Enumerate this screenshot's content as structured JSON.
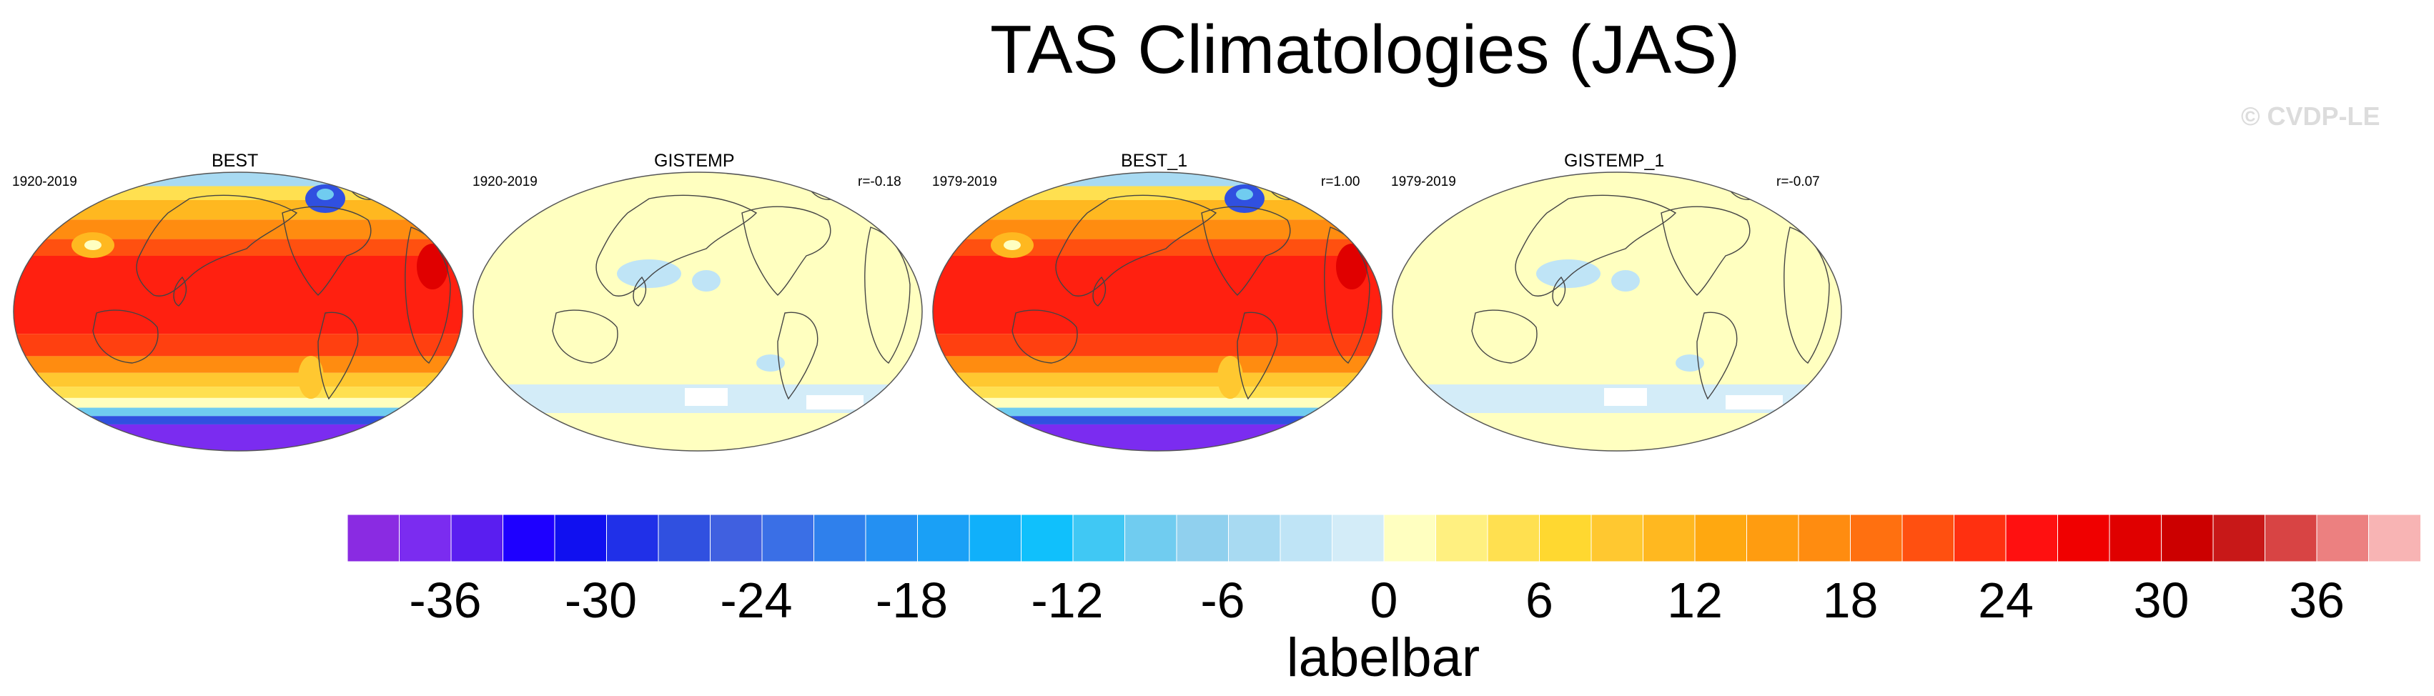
{
  "figure": {
    "title": "TAS Climatologies (JAS)",
    "copyright": "© CVDP-LE",
    "labelbar_title": "labelbar"
  },
  "panels": [
    {
      "title": "BEST",
      "period": "1920-2019",
      "stat": "",
      "kind": "full"
    },
    {
      "title": "GISTEMP",
      "period": "1920-2019",
      "stat": "r=-0.18",
      "kind": "anom"
    },
    {
      "title": "BEST_1",
      "period": "1979-2019",
      "stat": "r=1.00",
      "kind": "full"
    },
    {
      "title": "GISTEMP_1",
      "period": "1979-2019",
      "stat": "r=-0.07",
      "kind": "anom"
    }
  ],
  "colorbar": {
    "ticks": [
      "-36",
      "-30",
      "-24",
      "-18",
      "-12",
      "-6",
      "0",
      "6",
      "12",
      "18",
      "24",
      "30",
      "36"
    ],
    "colors": [
      "#8a2be2",
      "#7b2cf0",
      "#5a1ef0",
      "#1e00ff",
      "#1010f0",
      "#2030e8",
      "#3050e0",
      "#4060e0",
      "#3a6fe6",
      "#2f80ec",
      "#2490f2",
      "#1aa0f6",
      "#10b0fa",
      "#10c0fc",
      "#40c8f4",
      "#70ccf0",
      "#90d0ee",
      "#a8daf2",
      "#bfe4f6",
      "#d3ecf8",
      "#ffffc0",
      "#fff080",
      "#ffe050",
      "#ffd830",
      "#ffc830",
      "#ffb820",
      "#ffa810",
      "#ff9c10",
      "#ff8c10",
      "#ff7010",
      "#ff5010",
      "#ff3010",
      "#ff1010",
      "#f00000",
      "#e00000",
      "#cc0000",
      "#c81818",
      "#d84444",
      "#ec8080",
      "#f8b4b4"
    ]
  }
}
